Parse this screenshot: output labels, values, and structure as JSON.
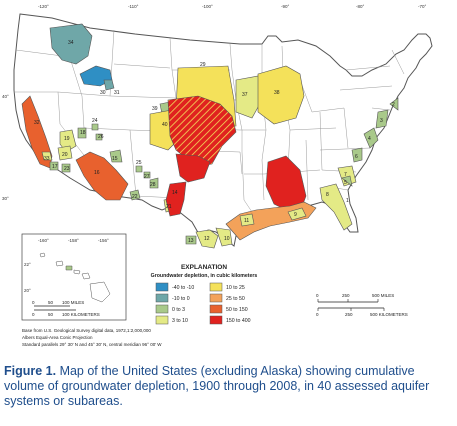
{
  "colors": {
    "n40_10": "#2f8fc4",
    "n10_0": "#6fa7a8",
    "p0_3": "#a9c98a",
    "p3_10": "#e4ea86",
    "p10_25": "#f4e15a",
    "p25_50": "#f3a25a",
    "p50_150": "#e8612e",
    "p150_400": "#e0221f"
  },
  "graticule": {
    "top_longitudes": [
      "-120°",
      "-110°",
      "-100°",
      "-90°",
      "-80°",
      "-70°"
    ],
    "left_latitudes": [
      "40°",
      "30°"
    ],
    "inset_longitudes": [
      "-160°",
      "-158°",
      "-156°"
    ],
    "inset_latitudes": [
      "22°",
      "20°"
    ]
  },
  "aquifer_labels": [
    "34",
    "30",
    "31",
    "29",
    "39",
    "37",
    "38",
    "32",
    "33",
    "40",
    "24",
    "19",
    "18",
    "26",
    "25",
    "27",
    "28",
    "20",
    "23",
    "17",
    "21",
    "22",
    "1",
    "2",
    "3",
    "4",
    "5",
    "6",
    "7",
    "8",
    "9",
    "10",
    "11",
    "12",
    "13",
    "14",
    "15",
    "16",
    "35",
    "36"
  ],
  "legend": {
    "title": "EXPLANATION",
    "subtitle": "Groundwater depletion, in cubic kilometers",
    "items": [
      {
        "label": "-40 to -10",
        "color_key": "n40_10"
      },
      {
        "label": "-10 to 0",
        "color_key": "n10_0"
      },
      {
        "label": "0 to 3",
        "color_key": "p0_3"
      },
      {
        "label": "3 to 10",
        "color_key": "p3_10"
      },
      {
        "label": "10 to 25",
        "color_key": "p10_25"
      },
      {
        "label": "25 to 50",
        "color_key": "p25_50"
      },
      {
        "label": "50 to 150",
        "color_key": "p50_150"
      },
      {
        "label": "150 to 400",
        "color_key": "p150_400"
      }
    ]
  },
  "scale_main": {
    "miles_ticks": [
      "0",
      "250",
      "500 MILES"
    ],
    "km_ticks": [
      "0",
      "250",
      "500 KILOMETERS"
    ]
  },
  "scale_inset": {
    "miles_ticks": [
      "0",
      "50",
      "100 MILES"
    ],
    "km_ticks": [
      "0",
      "50",
      "100 KILOMETERS"
    ]
  },
  "source_note": {
    "line1": "Base from U.S. Geological Survey digital data, 1972,1:2,000,000",
    "line2": "Albers Equal-Area Conic Projection",
    "line3": "Standard parallels 29° 30' N and 45° 30' N, central meridian 96° 00' W"
  },
  "caption": {
    "lead": "Figure 1.",
    "text": " Map of the United States (excluding Alaska) showing cumulative volume of groundwater depletion, 1900 through 2008, in 40 assessed aquifer systems or subareas."
  }
}
